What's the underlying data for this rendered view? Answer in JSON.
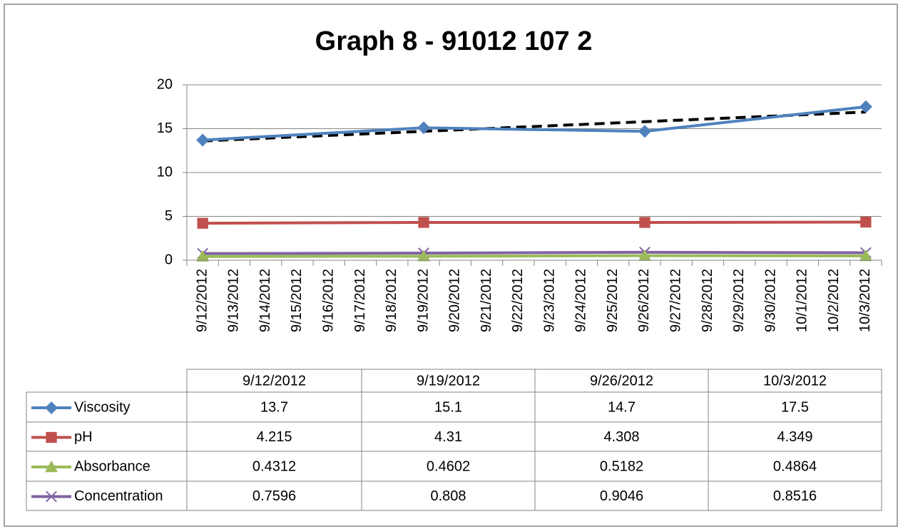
{
  "chart_data": {
    "type": "line",
    "title": "Graph 8 - 91012 107 2",
    "x": [
      "9/12/2012",
      "9/19/2012",
      "9/26/2012",
      "10/3/2012"
    ],
    "xticks": [
      "9/12/2012",
      "9/13/2012",
      "9/14/2012",
      "9/15/2012",
      "9/16/2012",
      "9/17/2012",
      "9/18/2012",
      "9/19/2012",
      "9/20/2012",
      "9/21/2012",
      "9/22/2012",
      "9/23/2012",
      "9/24/2012",
      "9/25/2012",
      "9/26/2012",
      "9/27/2012",
      "9/28/2012",
      "9/29/2012",
      "9/30/2012",
      "10/1/2012",
      "10/2/2012",
      "10/3/2012"
    ],
    "ylim": [
      0,
      20
    ],
    "yticks": [
      0,
      5,
      10,
      15,
      20
    ],
    "grid": true,
    "trendline": true,
    "series": [
      {
        "name": "Viscosity",
        "color": "#4f81bd",
        "marker": "diamond",
        "values": [
          13.7,
          15.1,
          14.7,
          17.5
        ]
      },
      {
        "name": "pH",
        "color": "#c0504d",
        "marker": "square",
        "values": [
          4.215,
          4.31,
          4.308,
          4.349
        ]
      },
      {
        "name": "Absorbance",
        "color": "#9bbb59",
        "marker": "triangle",
        "values": [
          0.4312,
          0.4602,
          0.5182,
          0.4864
        ]
      },
      {
        "name": "Concentration",
        "color": "#8064a2",
        "marker": "x",
        "values": [
          0.7596,
          0.808,
          0.9046,
          0.8516
        ]
      }
    ]
  }
}
